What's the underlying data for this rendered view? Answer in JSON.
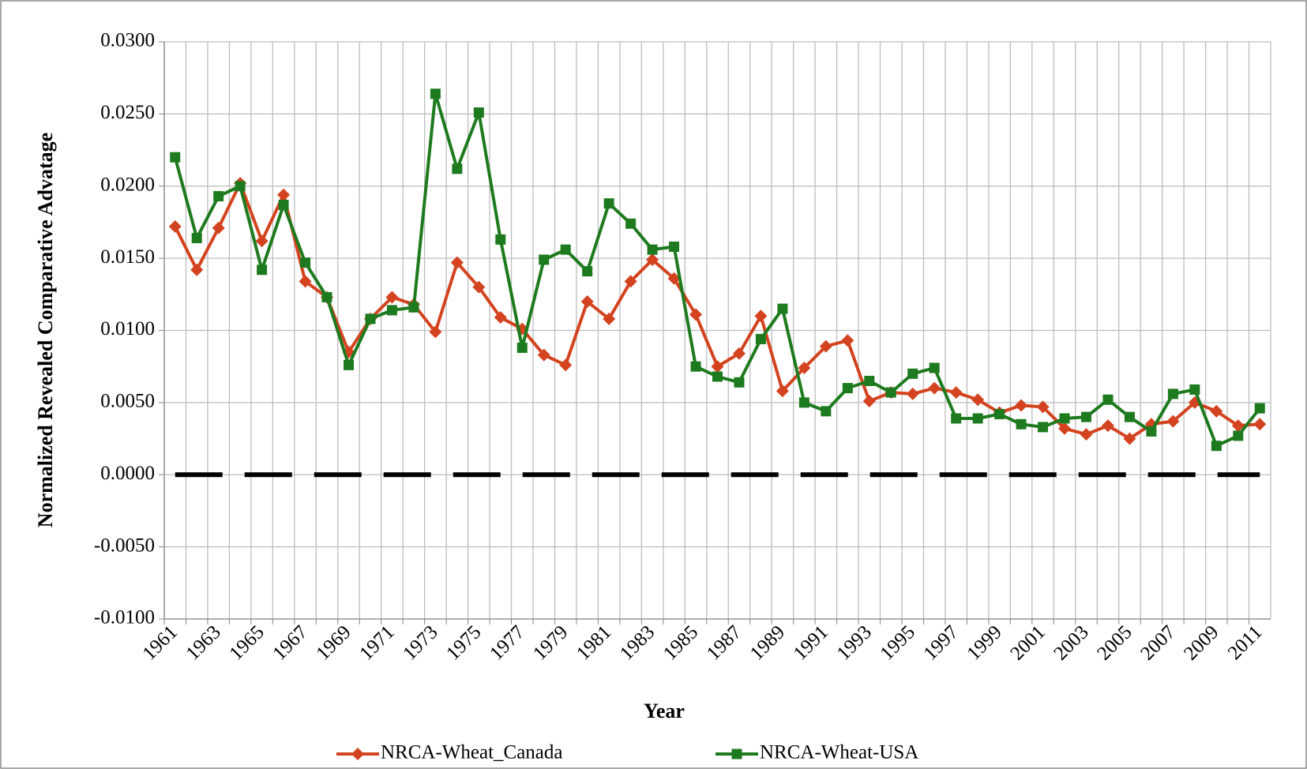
{
  "chart_data": {
    "type": "line",
    "x_label": "Year",
    "y_label": "Normalized Revealed Comparative Advatage",
    "categories": [
      "1961",
      null,
      "1963",
      null,
      "1965",
      null,
      "1967",
      null,
      "1969",
      null,
      "1971",
      null,
      "1973",
      null,
      "1975",
      null,
      "1977",
      null,
      "1979",
      null,
      "1981",
      null,
      "1983",
      null,
      "1985",
      null,
      "1987",
      null,
      "1989",
      null,
      "1991",
      null,
      "1993",
      null,
      "1995",
      null,
      "1997",
      null,
      "1999",
      null,
      "2001",
      null,
      "2003",
      null,
      "2005",
      null,
      "2007",
      null,
      "2009",
      null,
      "2011"
    ],
    "series": [
      {
        "name": "NRCA-Wheat_Canada",
        "color": "#d4431f",
        "marker": "diamond",
        "values": [
          0.0172,
          0.0142,
          0.0171,
          0.0202,
          0.0162,
          0.0194,
          0.0134,
          0.0123,
          0.0085,
          0.0108,
          0.0123,
          0.0118,
          0.0099,
          0.0147,
          0.013,
          0.0109,
          0.0101,
          0.0083,
          0.0076,
          0.012,
          0.0108,
          0.0134,
          0.0149,
          0.0136,
          0.0111,
          0.0075,
          0.0084,
          0.011,
          0.0058,
          0.0074,
          0.0089,
          0.0093,
          0.0051,
          0.0057,
          0.0056,
          0.006,
          0.0057,
          0.0052,
          0.0043,
          0.0048,
          0.0047,
          0.0032,
          0.0028,
          0.0034,
          0.0025,
          0.0035,
          0.0037,
          0.005,
          0.0044,
          0.0034,
          0.0035
        ]
      },
      {
        "name": "NRCA-Wheat-USA",
        "color": "#1e7a1e",
        "marker": "square",
        "values": [
          0.022,
          0.0164,
          0.0193,
          0.02,
          0.0142,
          0.0187,
          0.0147,
          0.0123,
          0.0076,
          0.0108,
          0.0114,
          0.0116,
          0.0264,
          0.0212,
          0.0251,
          0.0163,
          0.0088,
          0.0149,
          0.0156,
          0.0141,
          0.0188,
          0.0174,
          0.0156,
          0.0158,
          0.0075,
          0.0068,
          0.0064,
          0.0094,
          0.0115,
          0.005,
          0.0044,
          0.006,
          0.0065,
          0.0057,
          0.007,
          0.0074,
          0.0039,
          0.0039,
          0.0042,
          0.0035,
          0.0033,
          0.0039,
          0.004,
          0.0052,
          0.004,
          0.003,
          0.0056,
          0.0059,
          0.002,
          0.0027,
          0.0046
        ]
      }
    ],
    "zero_line": {
      "value": 0,
      "color": "#000000"
    },
    "ylim": [
      -0.01,
      0.03
    ],
    "yticks": [
      {
        "value": -0.01,
        "label": "-0.0100"
      },
      {
        "value": -0.005,
        "label": "-0.0050"
      },
      {
        "value": 0,
        "label": "0.0000"
      },
      {
        "value": 0.005,
        "label": "0.0050"
      },
      {
        "value": 0.01,
        "label": "0.0100"
      },
      {
        "value": 0.015,
        "label": "0.0150"
      },
      {
        "value": 0.02,
        "label": "0.0200"
      },
      {
        "value": 0.025,
        "label": "0.0250"
      },
      {
        "value": 0.03,
        "label": "0.0300"
      }
    ],
    "grid": true,
    "legend_position": "bottom"
  }
}
